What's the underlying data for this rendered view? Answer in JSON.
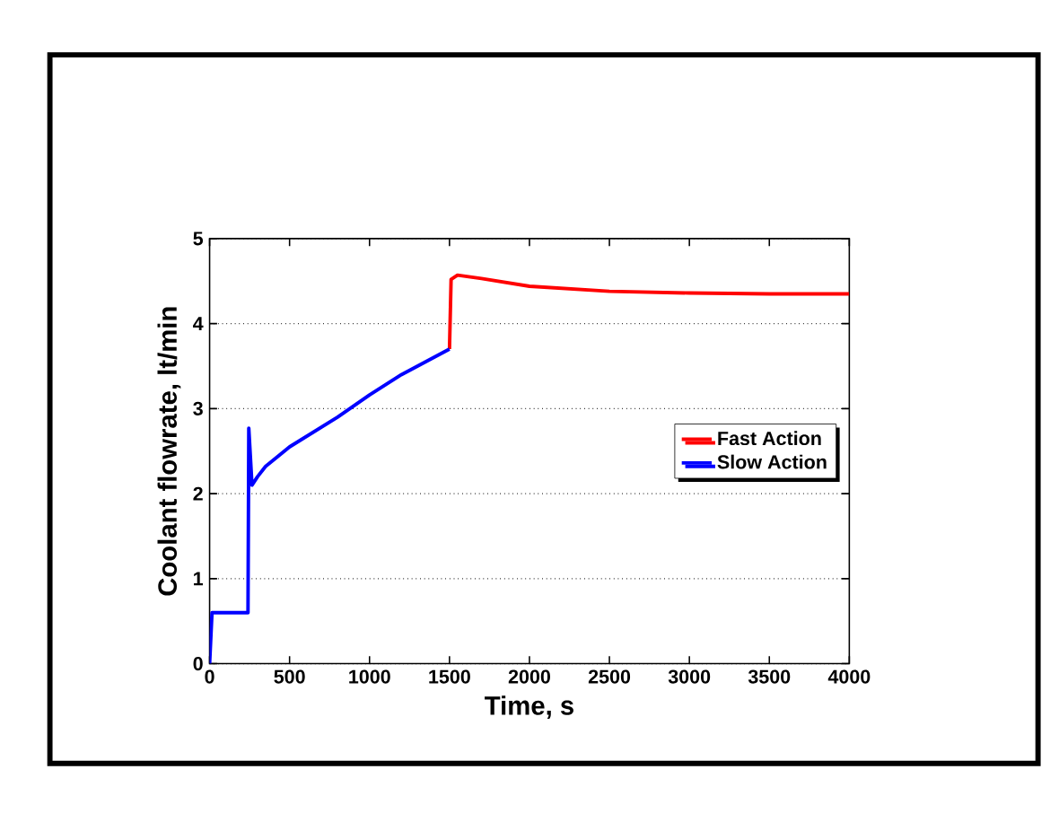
{
  "chart_data": {
    "type": "line",
    "xlabel": "Time, s",
    "ylabel": "Coolant flowrate, lt/min",
    "xlim": [
      0,
      4000
    ],
    "xticks": [
      0,
      500,
      1000,
      1500,
      2000,
      2500,
      3000,
      3500,
      4000
    ],
    "ylim": [
      0,
      5
    ],
    "yticks": [
      0,
      1,
      2,
      3,
      4,
      5
    ],
    "grid": "y",
    "legend": "right",
    "marker": "none",
    "line_style": "solid",
    "series": [
      {
        "name": "Fast Action",
        "color": "#ff0000",
        "x": [
          1500,
          1510,
          1550,
          1700,
          2000,
          2500,
          3000,
          3500,
          4000
        ],
        "values": [
          3.7,
          4.52,
          4.57,
          4.53,
          4.44,
          4.38,
          4.36,
          4.35,
          4.35
        ]
      },
      {
        "name": "Slow Action",
        "color": "#0000ff",
        "x": [
          0,
          15,
          240,
          245,
          265,
          300,
          350,
          500,
          800,
          1000,
          1200,
          1500
        ],
        "values": [
          0,
          0.6,
          0.6,
          2.77,
          2.1,
          2.2,
          2.32,
          2.55,
          2.9,
          3.16,
          3.4,
          3.7
        ]
      }
    ]
  }
}
